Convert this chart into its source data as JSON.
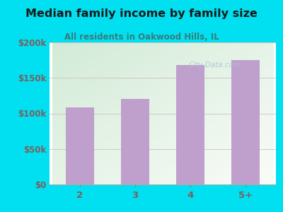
{
  "title": "Median family income by family size",
  "subtitle": "All residents in Oakwood Hills, IL",
  "categories": [
    "2",
    "3",
    "4",
    "5+"
  ],
  "values": [
    108000,
    120000,
    168000,
    175000
  ],
  "bar_color": "#bf9fcc",
  "ylim": [
    0,
    200000
  ],
  "yticks": [
    0,
    50000,
    100000,
    150000,
    200000
  ],
  "ytick_labels": [
    "$0",
    "$50k",
    "$100k",
    "$150k",
    "$200k"
  ],
  "background_outer": "#00e0f0",
  "title_color": "#1a1a1a",
  "subtitle_color": "#3a7a7a",
  "tick_color": "#7a6060",
  "grid_color": "#ccbbbb",
  "watermark": "City-Data.com",
  "watermark_color": "#aabfcf"
}
